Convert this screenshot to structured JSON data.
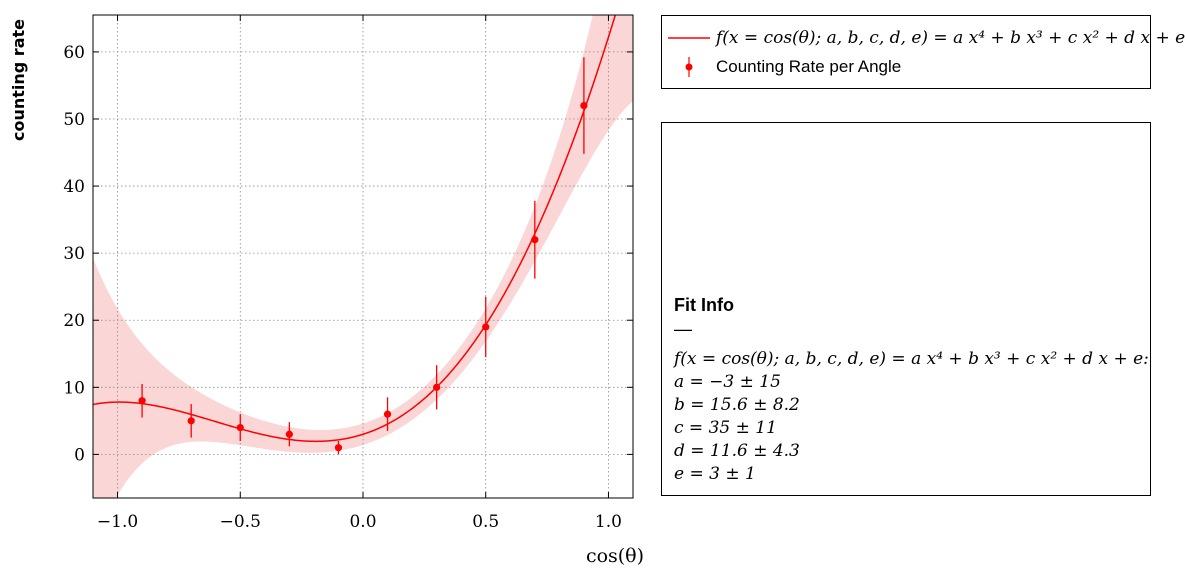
{
  "chart_data": {
    "type": "scatter",
    "xlabel": "cos(θ)",
    "ylabel": "counting rate",
    "xlim": [
      -1.1,
      1.1
    ],
    "ylim": [
      -6.5,
      65.5
    ],
    "xticks": [
      -1.0,
      -0.5,
      0.0,
      0.5,
      1.0
    ],
    "xtick_labels": [
      "−1.0",
      "−0.5",
      "0.0",
      "0.5",
      "1.0"
    ],
    "yticks": [
      0,
      10,
      20,
      30,
      40,
      50,
      60
    ],
    "ytick_labels": [
      "0",
      "10",
      "20",
      "30",
      "40",
      "50",
      "60"
    ],
    "grid": true,
    "series": [
      {
        "name": "Counting Rate per Angle",
        "kind": "errorbar",
        "color": "#ff0000",
        "x": [
          -0.9,
          -0.7,
          -0.5,
          -0.3,
          -0.1,
          0.1,
          0.3,
          0.5,
          0.7,
          0.9
        ],
        "y": [
          8,
          5,
          4,
          3,
          1,
          6,
          10,
          19,
          32,
          52
        ],
        "yerr": [
          2.5,
          2.5,
          2.0,
          1.8,
          1.0,
          2.5,
          3.3,
          4.5,
          5.8,
          7.2
        ]
      },
      {
        "name": "f(x = cos(θ); a, b, c, d, e) = a x⁴ + b x³ + c x² + d x + e",
        "kind": "fit",
        "color": "#ff0000",
        "band_color": "#fbd6d6",
        "params": {
          "a": -3,
          "b": 15.6,
          "c": 35,
          "d": 11.6,
          "e": 3
        },
        "param_err": {
          "a": 15,
          "b": 8.2,
          "c": 11,
          "d": 4.3,
          "e": 1
        }
      }
    ],
    "legend_position": "right"
  },
  "legend": {
    "fit_label": "f(x = cos(θ); a, b, c, d, e) = a x⁴ + b x³ + c x² + d x + e",
    "data_label": "Counting Rate per Angle"
  },
  "fit_info": {
    "title": "Fit Info",
    "dash": "—",
    "function": "f(x = cos(θ); a, b, c, d, e) = a x⁴ + b x³ + c x² + d x + e:",
    "lines": [
      "a = −3 ± 15",
      "b = 15.6 ± 8.2",
      "c = 35 ± 11",
      "d = 11.6 ± 4.3",
      "e = 3 ± 1"
    ]
  }
}
